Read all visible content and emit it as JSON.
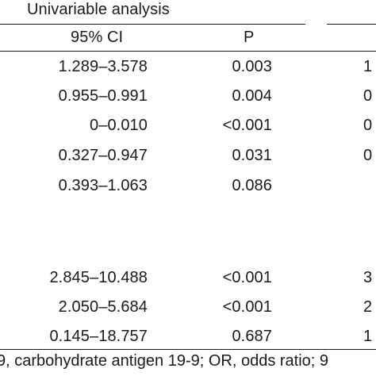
{
  "table": {
    "group_header": "Univariable analysis",
    "columns": {
      "ci": "95% CI",
      "p": "P"
    },
    "rows": [
      {
        "ci": "1.289–3.578",
        "p": "0.003",
        "cut": "1"
      },
      {
        "ci": "0.955–0.991",
        "p": "0.004",
        "cut": "0"
      },
      {
        "ci": "0–0.010",
        "p": "<0.001",
        "cut": "0"
      },
      {
        "ci": "0.327–0.947",
        "p": "0.031",
        "cut": "0"
      },
      {
        "ci": "0.393–1.063",
        "p": "0.086",
        "cut": ""
      },
      {
        "ci": "2.845–10.488",
        "p": "<0.001",
        "cut": "3"
      },
      {
        "ci": "2.050–5.684",
        "p": "<0.001",
        "cut": "2"
      },
      {
        "ci": "0.145–18.757",
        "p": "0.687",
        "cut": "1"
      }
    ]
  },
  "footnote": "9, carbohydrate antigen 19-9; OR, odds ratio; 9"
}
